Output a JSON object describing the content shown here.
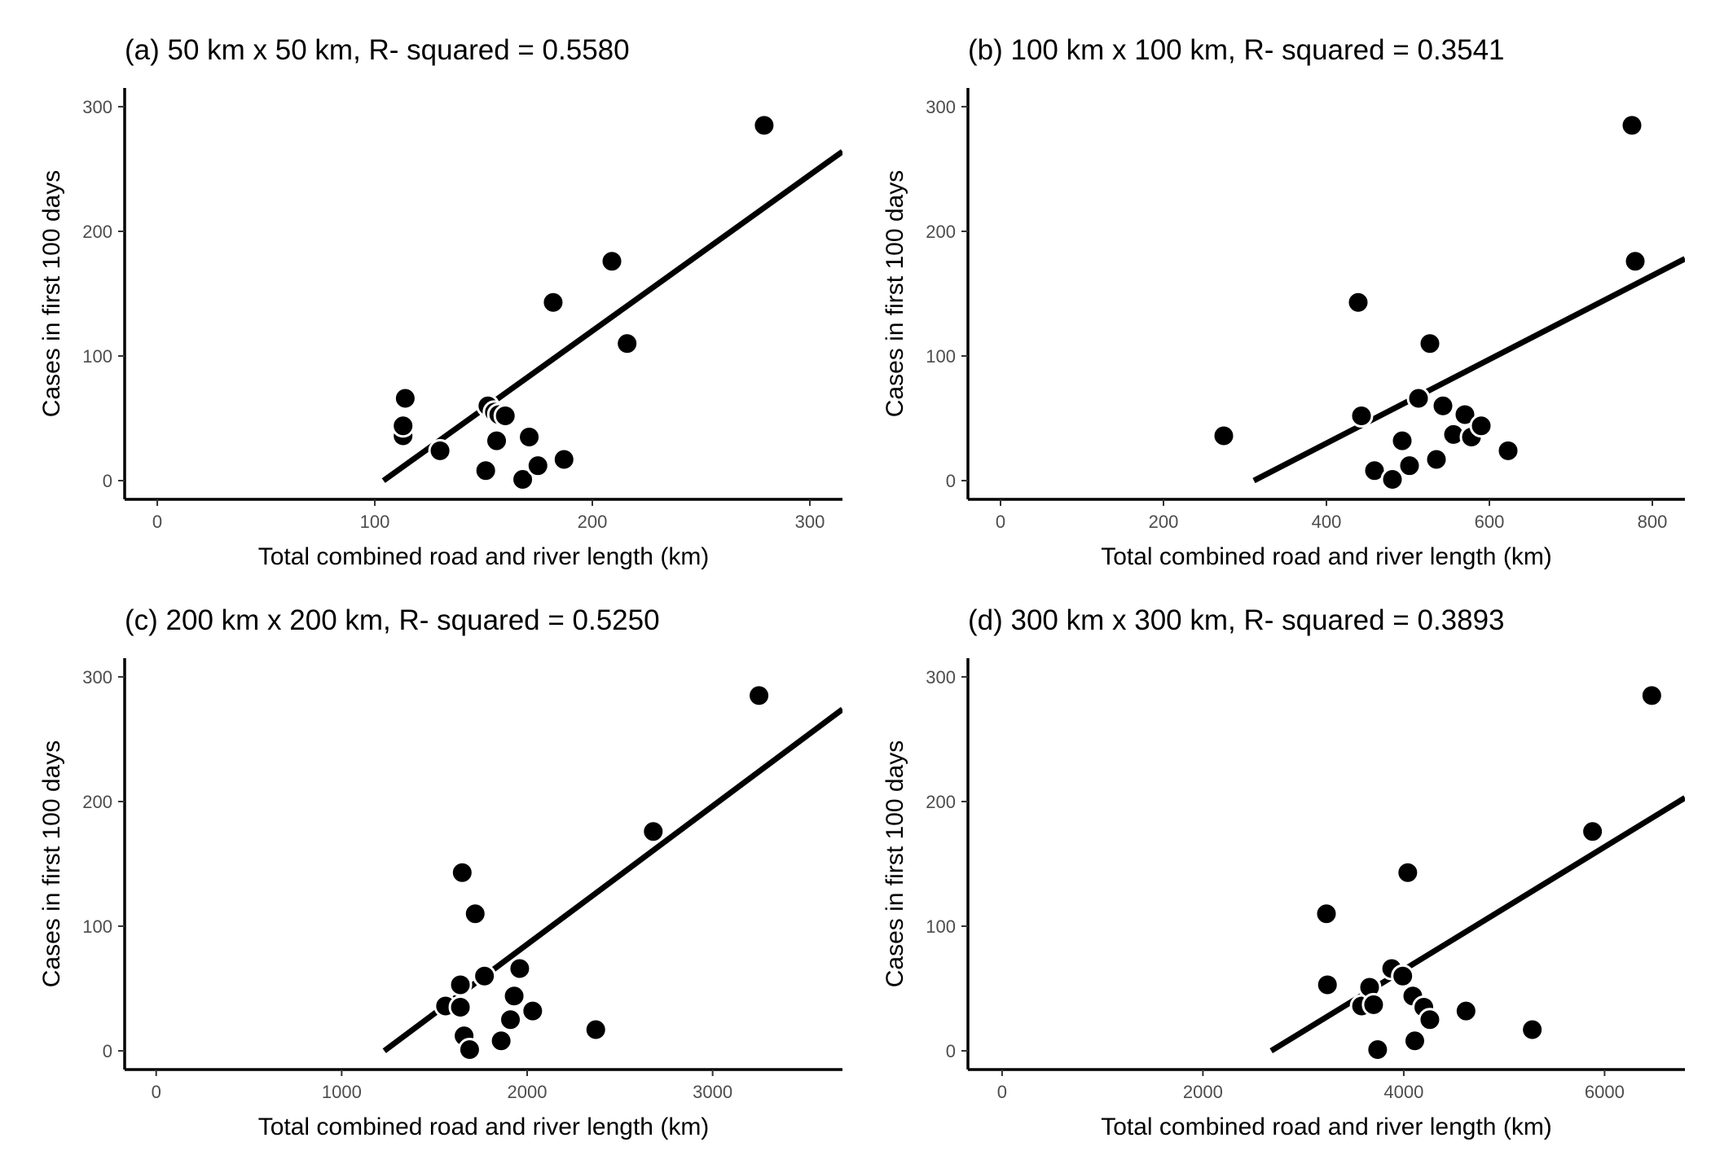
{
  "chart_data": [
    {
      "type": "scatter",
      "title": "(a) 50 km x 50 km, R- squared = 0.5580",
      "xlabel": "Total combined road and river length (km)",
      "ylabel": "Cases in first 100 days",
      "xlim": [
        -15,
        315
      ],
      "ylim": [
        -15,
        315
      ],
      "xticks": [
        0,
        100,
        200,
        300
      ],
      "yticks": [
        0,
        100,
        200,
        300
      ],
      "grid": false,
      "points": [
        {
          "x": 113,
          "y": 36
        },
        {
          "x": 113,
          "y": 44
        },
        {
          "x": 114,
          "y": 66
        },
        {
          "x": 130,
          "y": 24
        },
        {
          "x": 151,
          "y": 8
        },
        {
          "x": 152,
          "y": 60
        },
        {
          "x": 155,
          "y": 55
        },
        {
          "x": 157,
          "y": 53
        },
        {
          "x": 160,
          "y": 52
        },
        {
          "x": 156,
          "y": 32
        },
        {
          "x": 168,
          "y": 1
        },
        {
          "x": 171,
          "y": 35
        },
        {
          "x": 175,
          "y": 12
        },
        {
          "x": 187,
          "y": 17
        },
        {
          "x": 182,
          "y": 143
        },
        {
          "x": 209,
          "y": 176
        },
        {
          "x": 216,
          "y": 110
        },
        {
          "x": 279,
          "y": 285
        }
      ],
      "fit": {
        "x": [
          104,
          315
        ],
        "y": [
          0,
          264
        ]
      }
    },
    {
      "type": "scatter",
      "title": "(b) 100 km x 100 km, R- squared = 0.3541",
      "xlabel": "Total combined road and river length (km)",
      "ylabel": "Cases in first 100 days",
      "xlim": [
        -40,
        840
      ],
      "ylim": [
        -15,
        315
      ],
      "xticks": [
        0,
        200,
        400,
        600,
        800
      ],
      "yticks": [
        0,
        100,
        200,
        300
      ],
      "grid": false,
      "points": [
        {
          "x": 274,
          "y": 36
        },
        {
          "x": 439,
          "y": 143
        },
        {
          "x": 443,
          "y": 52
        },
        {
          "x": 459,
          "y": 8
        },
        {
          "x": 481,
          "y": 1
        },
        {
          "x": 493,
          "y": 32
        },
        {
          "x": 502,
          "y": 12
        },
        {
          "x": 513,
          "y": 66
        },
        {
          "x": 527,
          "y": 110
        },
        {
          "x": 535,
          "y": 17
        },
        {
          "x": 543,
          "y": 60
        },
        {
          "x": 556,
          "y": 37
        },
        {
          "x": 570,
          "y": 53
        },
        {
          "x": 578,
          "y": 35
        },
        {
          "x": 590,
          "y": 44
        },
        {
          "x": 623,
          "y": 24
        },
        {
          "x": 775,
          "y": 285
        },
        {
          "x": 779,
          "y": 176
        }
      ],
      "fit": {
        "x": [
          311,
          840
        ],
        "y": [
          0,
          178
        ]
      }
    },
    {
      "type": "scatter",
      "title": "(c) 200 km x 200 km, R- squared = 0.5250",
      "xlabel": "Total combined road and river length (km)",
      "ylabel": "Cases in first 100 days",
      "xlim": [
        -170,
        3700
      ],
      "ylim": [
        -15,
        315
      ],
      "xticks": [
        0,
        1000,
        2000,
        3000
      ],
      "yticks": [
        0,
        100,
        200,
        300
      ],
      "grid": false,
      "points": [
        {
          "x": 1560,
          "y": 36
        },
        {
          "x": 1640,
          "y": 35
        },
        {
          "x": 1640,
          "y": 53
        },
        {
          "x": 1650,
          "y": 143
        },
        {
          "x": 1660,
          "y": 12
        },
        {
          "x": 1690,
          "y": 1
        },
        {
          "x": 1720,
          "y": 110
        },
        {
          "x": 1770,
          "y": 60
        },
        {
          "x": 1860,
          "y": 8
        },
        {
          "x": 1910,
          "y": 25
        },
        {
          "x": 1930,
          "y": 44
        },
        {
          "x": 1960,
          "y": 66
        },
        {
          "x": 2030,
          "y": 32
        },
        {
          "x": 2370,
          "y": 17
        },
        {
          "x": 2680,
          "y": 176
        },
        {
          "x": 3250,
          "y": 285
        }
      ],
      "fit": {
        "x": [
          1230,
          3700
        ],
        "y": [
          0,
          274
        ]
      }
    },
    {
      "type": "scatter",
      "title": "(d) 300 km x 300 km, R- squared = 0.3893",
      "xlabel": "Total combined road and river length (km)",
      "ylabel": "Cases in first 100 days",
      "xlim": [
        -340,
        6800
      ],
      "ylim": [
        -15,
        315
      ],
      "xticks": [
        0,
        2000,
        4000,
        6000
      ],
      "yticks": [
        0,
        100,
        200,
        300
      ],
      "grid": false,
      "points": [
        {
          "x": 3230,
          "y": 110
        },
        {
          "x": 3240,
          "y": 53
        },
        {
          "x": 3580,
          "y": 36
        },
        {
          "x": 3660,
          "y": 51
        },
        {
          "x": 3700,
          "y": 37
        },
        {
          "x": 3740,
          "y": 1
        },
        {
          "x": 3880,
          "y": 66
        },
        {
          "x": 3990,
          "y": 60
        },
        {
          "x": 4040,
          "y": 143
        },
        {
          "x": 4090,
          "y": 44
        },
        {
          "x": 4110,
          "y": 8
        },
        {
          "x": 4200,
          "y": 35
        },
        {
          "x": 4260,
          "y": 25
        },
        {
          "x": 4620,
          "y": 32
        },
        {
          "x": 5280,
          "y": 17
        },
        {
          "x": 5880,
          "y": 176
        },
        {
          "x": 6470,
          "y": 285
        }
      ],
      "fit": {
        "x": [
          2680,
          6800
        ],
        "y": [
          0,
          203
        ]
      }
    }
  ]
}
